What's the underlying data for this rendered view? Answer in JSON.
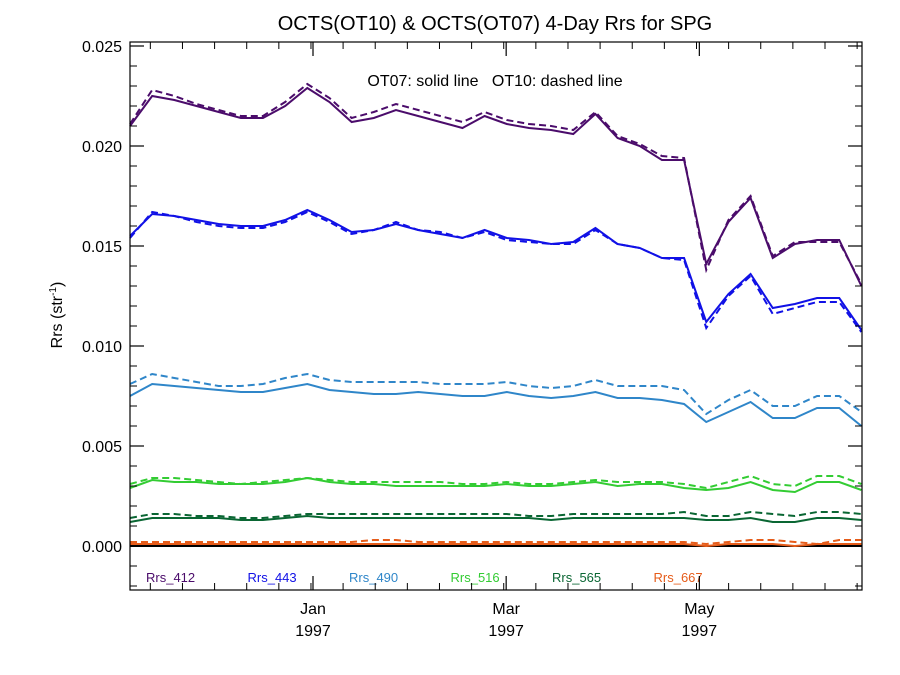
{
  "chart_data": {
    "type": "line",
    "title": "OCTS(OT10) & OCTS(OT07) 4-Day Rrs for SPG",
    "ylabel": "Rrs (str",
    "ylabel_superscript": "-1",
    "ylabel_close": ")",
    "annotation": "OT07: solid line   OT10: dashed line",
    "xlim": [
      0,
      36
    ],
    "ylim": [
      -0.0022,
      0.0252
    ],
    "y_ticks": [
      0.0,
      0.005,
      0.01,
      0.015,
      0.02,
      0.025
    ],
    "y_tick_labels": [
      "0.000",
      "0.005",
      "0.010",
      "0.015",
      "0.020",
      "0.025"
    ],
    "x_ticks": [
      {
        "x": 9,
        "month": "Jan",
        "year": "1997"
      },
      {
        "x": 18.5,
        "month": "Mar",
        "year": "1997"
      },
      {
        "x": 28,
        "month": "May",
        "year": "1997"
      }
    ],
    "zero_line": 0.0,
    "x": [
      0,
      1,
      2,
      3,
      4,
      5,
      6,
      7,
      8,
      9,
      10,
      11,
      12,
      13,
      14,
      15,
      16,
      17,
      18,
      19,
      20,
      21,
      22,
      23,
      24,
      25,
      26,
      27,
      28,
      29,
      30,
      31,
      32,
      33,
      34,
      35,
      36
    ],
    "series": [
      {
        "name": "Rrs_412",
        "color": "#4b0c6b",
        "solid": [
          0.021,
          0.0225,
          0.0223,
          0.022,
          0.0217,
          0.0214,
          0.0214,
          0.022,
          0.0229,
          0.0222,
          0.0212,
          0.0214,
          0.0218,
          0.0215,
          0.0212,
          0.0209,
          0.0215,
          0.0211,
          0.0209,
          0.0208,
          0.0206,
          0.0216,
          0.0204,
          0.02,
          0.0193,
          0.0193,
          0.0141,
          0.0162,
          0.0174,
          0.0144,
          0.0151,
          0.0153,
          0.0153,
          0.013
        ],
        "dashed": [
          0.0211,
          0.0228,
          0.0225,
          0.0221,
          0.0218,
          0.0215,
          0.0215,
          0.0222,
          0.0231,
          0.0224,
          0.0214,
          0.0217,
          0.0221,
          0.0218,
          0.0215,
          0.0212,
          0.0217,
          0.0213,
          0.0211,
          0.021,
          0.0208,
          0.0217,
          0.0205,
          0.0201,
          0.0195,
          0.0194,
          0.0138,
          0.0163,
          0.0175,
          0.0145,
          0.0152,
          0.0152,
          0.0152,
          0.0131
        ]
      },
      {
        "name": "Rrs_443",
        "color": "#1111e6",
        "solid": [
          0.0155,
          0.0166,
          0.0165,
          0.0163,
          0.0161,
          0.016,
          0.016,
          0.0163,
          0.0168,
          0.0163,
          0.0157,
          0.0158,
          0.0161,
          0.0158,
          0.0156,
          0.0154,
          0.0158,
          0.0154,
          0.0153,
          0.0151,
          0.0152,
          0.0159,
          0.0151,
          0.0149,
          0.0144,
          0.0144,
          0.0112,
          0.0126,
          0.0136,
          0.0119,
          0.0121,
          0.0124,
          0.0124,
          0.0108
        ],
        "dashed": [
          0.0154,
          0.0167,
          0.0165,
          0.0162,
          0.016,
          0.0159,
          0.0159,
          0.0162,
          0.0167,
          0.0162,
          0.0156,
          0.0158,
          0.0162,
          0.0158,
          0.0157,
          0.0154,
          0.0157,
          0.0153,
          0.0152,
          0.0151,
          0.0151,
          0.0158,
          0.0151,
          0.0149,
          0.0144,
          0.0143,
          0.0109,
          0.0125,
          0.0135,
          0.0116,
          0.0119,
          0.0122,
          0.0122,
          0.0107
        ]
      },
      {
        "name": "Rrs_490",
        "color": "#2f86c9",
        "solid": [
          0.0075,
          0.0081,
          0.008,
          0.0079,
          0.0078,
          0.0077,
          0.0077,
          0.0079,
          0.0081,
          0.0078,
          0.0077,
          0.0076,
          0.0076,
          0.0077,
          0.0076,
          0.0075,
          0.0075,
          0.0077,
          0.0075,
          0.0074,
          0.0075,
          0.0077,
          0.0074,
          0.0074,
          0.0073,
          0.0071,
          0.0062,
          0.0067,
          0.0072,
          0.0064,
          0.0064,
          0.0069,
          0.0069,
          0.006
        ],
        "dashed": [
          0.0081,
          0.0086,
          0.0084,
          0.0082,
          0.008,
          0.008,
          0.0081,
          0.0084,
          0.0086,
          0.0083,
          0.0082,
          0.0082,
          0.0082,
          0.0082,
          0.0081,
          0.0081,
          0.0081,
          0.0082,
          0.008,
          0.0079,
          0.008,
          0.0083,
          0.008,
          0.008,
          0.008,
          0.0078,
          0.0066,
          0.0073,
          0.0078,
          0.007,
          0.007,
          0.0075,
          0.0075,
          0.0067
        ]
      },
      {
        "name": "Rrs_516",
        "color": "#33cc33",
        "solid": [
          0.0029,
          0.0033,
          0.0032,
          0.0032,
          0.0031,
          0.0031,
          0.0031,
          0.0032,
          0.0034,
          0.0032,
          0.0031,
          0.0031,
          0.003,
          0.003,
          0.003,
          0.003,
          0.003,
          0.0031,
          0.003,
          0.003,
          0.0031,
          0.0032,
          0.003,
          0.0031,
          0.0031,
          0.0029,
          0.0028,
          0.0029,
          0.0032,
          0.0028,
          0.0027,
          0.0032,
          0.0032,
          0.0028
        ],
        "dashed": [
          0.0031,
          0.0034,
          0.0034,
          0.0033,
          0.0032,
          0.0031,
          0.0032,
          0.0033,
          0.0034,
          0.0033,
          0.0032,
          0.0032,
          0.0032,
          0.0032,
          0.0032,
          0.0031,
          0.0031,
          0.0032,
          0.0031,
          0.0031,
          0.0032,
          0.0033,
          0.0032,
          0.0032,
          0.0032,
          0.0031,
          0.0029,
          0.0032,
          0.0035,
          0.0031,
          0.003,
          0.0035,
          0.0035,
          0.0031
        ]
      },
      {
        "name": "Rrs_565",
        "color": "#0a6633",
        "solid": [
          0.0012,
          0.0014,
          0.0014,
          0.0014,
          0.0014,
          0.0013,
          0.0013,
          0.0014,
          0.0015,
          0.0014,
          0.0014,
          0.0014,
          0.0014,
          0.0014,
          0.0014,
          0.0014,
          0.0014,
          0.0014,
          0.0014,
          0.0013,
          0.0014,
          0.0014,
          0.0014,
          0.0014,
          0.0014,
          0.0014,
          0.0013,
          0.0013,
          0.0014,
          0.0012,
          0.0012,
          0.0014,
          0.0014,
          0.0013
        ],
        "dashed": [
          0.0014,
          0.0016,
          0.0016,
          0.0015,
          0.0015,
          0.0014,
          0.0014,
          0.0015,
          0.0016,
          0.0016,
          0.0016,
          0.0016,
          0.0016,
          0.0016,
          0.0016,
          0.0016,
          0.0016,
          0.0016,
          0.0015,
          0.0015,
          0.0016,
          0.0016,
          0.0016,
          0.0016,
          0.0016,
          0.0017,
          0.0015,
          0.0015,
          0.0017,
          0.0016,
          0.0015,
          0.0017,
          0.0017,
          0.0016
        ]
      },
      {
        "name": "Rrs_667",
        "color": "#e65c1a",
        "solid": [
          0.0001,
          0.0001,
          0.0001,
          0.0001,
          0.0001,
          0.0001,
          0.0001,
          0.0001,
          0.0001,
          0.0001,
          0.0001,
          0.0001,
          0.0001,
          0.0001,
          0.0001,
          0.0001,
          0.0001,
          0.0001,
          0.0001,
          0.0001,
          0.0001,
          0.0001,
          0.0001,
          0.0001,
          0.0001,
          0.0001,
          0.0,
          0.0001,
          0.0001,
          0.0001,
          0.0,
          0.0001,
          0.0001,
          0.0001
        ],
        "dashed": [
          0.0002,
          0.0002,
          0.0002,
          0.0002,
          0.0002,
          0.0002,
          0.0002,
          0.0002,
          0.0002,
          0.0002,
          0.0002,
          0.0003,
          0.0003,
          0.0002,
          0.0002,
          0.0002,
          0.0002,
          0.0002,
          0.0002,
          0.0002,
          0.0002,
          0.0002,
          0.0002,
          0.0002,
          0.0002,
          0.0002,
          0.0001,
          0.0002,
          0.0003,
          0.0003,
          0.0002,
          0.0001,
          0.0003,
          0.0003
        ]
      }
    ],
    "series_x_start": 0,
    "series_x_step": 1.09,
    "legend_position": "bottom-inside"
  }
}
